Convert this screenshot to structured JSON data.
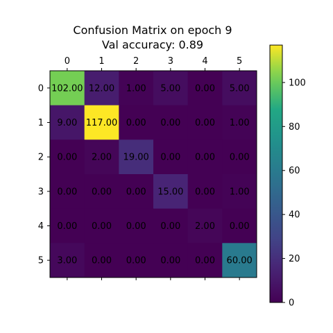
{
  "chart_data": {
    "type": "heatmap",
    "title": "Confusion Matrix on epoch 9",
    "subtitle": "Val accuracy: 0.89",
    "x_categories": [
      "0",
      "1",
      "2",
      "3",
      "4",
      "5"
    ],
    "y_categories": [
      "0",
      "1",
      "2",
      "3",
      "4",
      "5"
    ],
    "values": [
      [
        102,
        12,
        1,
        5,
        0,
        5
      ],
      [
        9,
        117,
        0,
        0,
        0,
        1
      ],
      [
        0,
        2,
        19,
        0,
        0,
        0
      ],
      [
        0,
        0,
        0,
        15,
        0,
        1
      ],
      [
        0,
        0,
        0,
        0,
        2,
        0
      ],
      [
        3,
        0,
        0,
        0,
        0,
        60
      ]
    ],
    "cell_labels": [
      [
        "102.00",
        "12.00",
        "1.00",
        "5.00",
        "0.00",
        "5.00"
      ],
      [
        "9.00",
        "117.00",
        "0.00",
        "0.00",
        "0.00",
        "1.00"
      ],
      [
        "0.00",
        "2.00",
        "19.00",
        "0.00",
        "0.00",
        "0.00"
      ],
      [
        "0.00",
        "0.00",
        "0.00",
        "15.00",
        "0.00",
        "1.00"
      ],
      [
        "0.00",
        "0.00",
        "0.00",
        "0.00",
        "2.00",
        "0.00"
      ],
      [
        "3.00",
        "0.00",
        "0.00",
        "0.00",
        "0.00",
        "60.00"
      ]
    ],
    "colormap": "viridis",
    "color_range": [
      0,
      117
    ],
    "colorbar_ticks": [
      "0",
      "20",
      "40",
      "60",
      "80",
      "100"
    ],
    "colorbar_tick_values": [
      0,
      20,
      40,
      60,
      80,
      100
    ],
    "xaxis_position": "top",
    "grid": false,
    "colorbar_position": "right"
  }
}
